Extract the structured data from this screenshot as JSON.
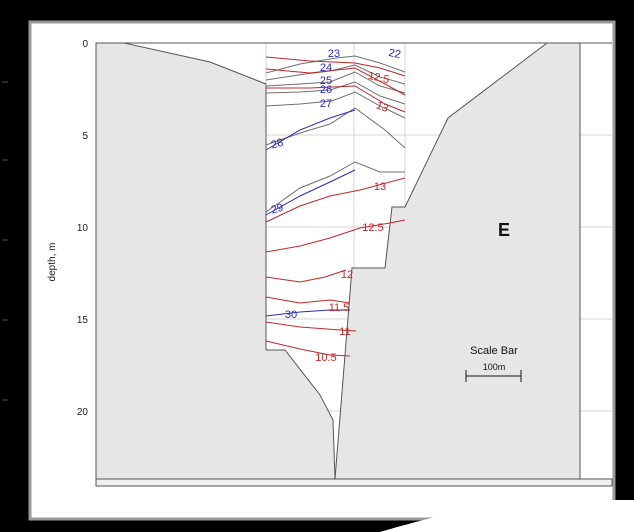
{
  "yaxis": {
    "label": "depth, m",
    "ticks": [
      {
        "label": "0",
        "depth": 0
      },
      {
        "label": "5",
        "depth": 5
      },
      {
        "label": "10",
        "depth": 10
      },
      {
        "label": "15",
        "depth": 15
      },
      {
        "label": "20",
        "depth": 20
      }
    ]
  },
  "side_label": "E",
  "scale_bar": {
    "title": "Scale Bar",
    "length_label": "100m"
  },
  "isotherm_labels": [
    "23",
    "24",
    "25",
    "26",
    "27",
    "28",
    "29",
    "30"
  ],
  "isohaline_labels": [
    "22",
    "12.5",
    "13",
    "13",
    "12.5",
    "12",
    "11.5",
    "11",
    "10.5"
  ],
  "colors": {
    "frame": "#000000",
    "terrain_fill": "#e6e6e6",
    "terrain_stroke": "#555555",
    "temperature": "#2b2bb3",
    "salinity": "#c0282a",
    "grid": "#c8c8c8",
    "contour_gray": "#707070"
  }
}
